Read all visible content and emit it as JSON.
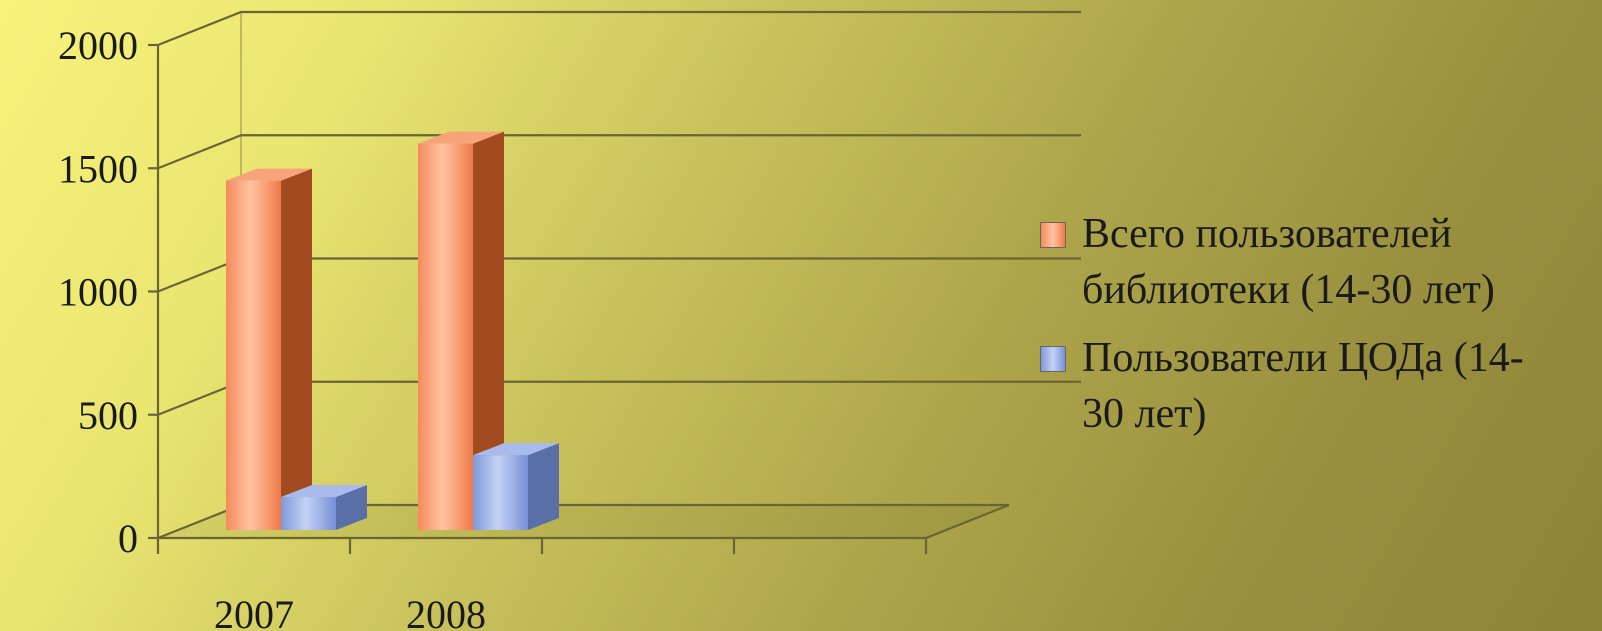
{
  "chart_data": {
    "type": "bar",
    "categories": [
      "2007",
      "2008"
    ],
    "series": [
      {
        "name": "Всего пользователей библиотеки (14-30 лет)",
        "values": [
          1450,
          1600
        ],
        "color": "#f5956a"
      },
      {
        "name": "Пользователи ЦОДа (14-30 лет)",
        "values": [
          150,
          320
        ],
        "color": "#8ea6e0"
      }
    ],
    "ylim": [
      0,
      2000
    ],
    "yticks": [
      "0",
      "500",
      "1000",
      "1500",
      "2000"
    ],
    "grid": true,
    "legend": "right",
    "style": "3d"
  },
  "legend": {
    "items": [
      {
        "label_line1": "Всего пользователей",
        "label_line2": "библиотеки (14-30 лет)"
      },
      {
        "label_line1": "Пользователи ЦОДа (14-",
        "label_line2": "30 лет)"
      }
    ]
  }
}
